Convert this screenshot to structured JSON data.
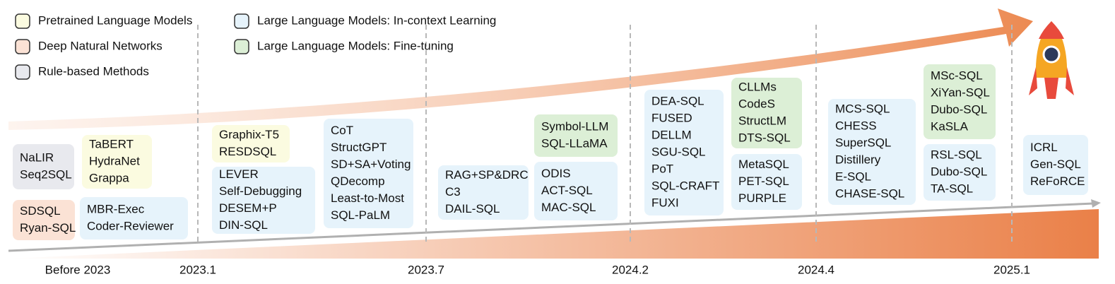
{
  "legend": [
    {
      "label": "Pretrained Language Models",
      "color": "#fbfbe0"
    },
    {
      "label": "Deep Natural Networks",
      "color": "#fbe2d5"
    },
    {
      "label": "Rule-based Methods",
      "color": "#e8e9ee"
    },
    {
      "label": "Large Language Models: In-context Learning",
      "color": "#e6f3fb"
    },
    {
      "label": "Large Language Models: Fine-tuning",
      "color": "#dcefd6"
    }
  ],
  "timeline": [
    "Before 2023",
    "2023.1",
    "2023.7",
    "2024.2",
    "2024.4",
    "2025.1"
  ],
  "boxes": [
    {
      "color": "#e8e9ee",
      "items": [
        "NaLIR",
        "Seq2SQL"
      ]
    },
    {
      "color": "#fbe2d5",
      "items": [
        "SDSQL",
        "Ryan-SQL"
      ]
    },
    {
      "color": "#fbfbe0",
      "items": [
        "TaBERT",
        "HydraNet",
        "Grappa"
      ]
    },
    {
      "color": "#e6f3fb",
      "items": [
        "MBR-Exec",
        "Coder-Reviewer"
      ]
    },
    {
      "color": "#fbfbe0",
      "items": [
        "Graphix-T5",
        "RESDSQL"
      ]
    },
    {
      "color": "#e6f3fb",
      "items": [
        "LEVER",
        "Self-Debugging",
        "DESEM+P",
        "DIN-SQL"
      ]
    },
    {
      "color": "#e6f3fb",
      "items": [
        "CoT",
        "StructGPT",
        "SD+SA+Voting",
        "QDecomp",
        "Least-to-Most",
        "SQL-PaLM"
      ]
    },
    {
      "color": "#e6f3fb",
      "items": [
        "RAG+SP&DRC",
        "C3",
        "DAIL-SQL"
      ]
    },
    {
      "color": "#dcefd6",
      "items": [
        "Symbol-LLM",
        "SQL-LLaMA"
      ]
    },
    {
      "color": "#e6f3fb",
      "items": [
        "ODIS",
        "ACT-SQL",
        "MAC-SQL"
      ]
    },
    {
      "color": "#e6f3fb",
      "items": [
        "DEA-SQL",
        "FUSED",
        "DELLM",
        "SGU-SQL",
        "PoT",
        "SQL-CRAFT",
        "FUXI"
      ]
    },
    {
      "color": "#dcefd6",
      "items": [
        "CLLMs",
        "CodeS",
        "StructLM",
        "DTS-SQL"
      ]
    },
    {
      "color": "#e6f3fb",
      "items": [
        "MetaSQL",
        "PET-SQL",
        "PURPLE"
      ]
    },
    {
      "color": "#e6f3fb",
      "items": [
        "MCS-SQL",
        "CHESS",
        "SuperSQL",
        "Distillery",
        "E-SQL",
        "CHASE-SQL"
      ]
    },
    {
      "color": "#dcefd6",
      "items": [
        "MSc-SQL",
        "XiYan-SQL",
        "Dubo-SQL",
        "KaSLA"
      ]
    },
    {
      "color": "#e6f3fb",
      "items": [
        "RSL-SQL",
        "Dubo-SQL",
        "TA-SQL"
      ]
    },
    {
      "color": "#e6f3fb",
      "items": [
        "ICRL",
        "Gen-SQL",
        "ReFoRCE"
      ]
    }
  ]
}
